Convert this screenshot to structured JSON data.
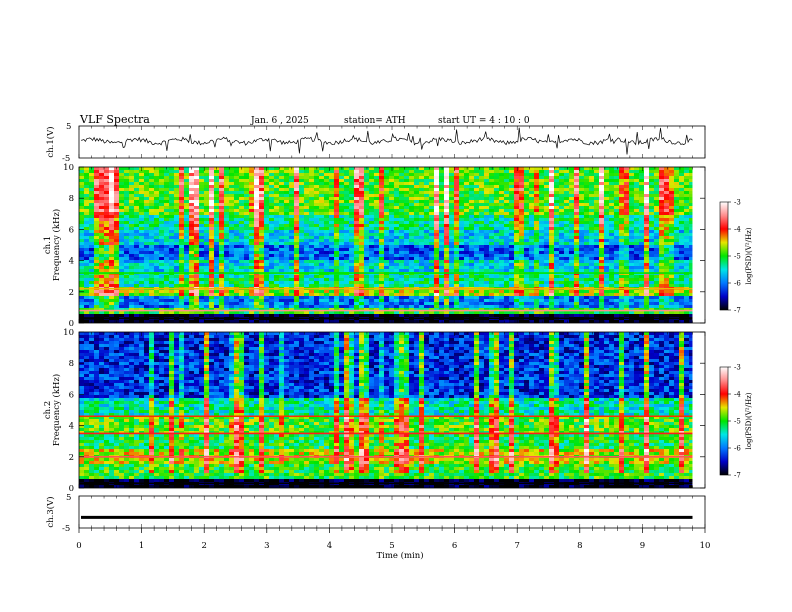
{
  "header": {
    "title": "VLF  Spectra",
    "date": "Jan. 6  , 2025",
    "station": "station= ATH",
    "start_time": "start  UT  =   4  : 10 : 0"
  },
  "chart_data": {
    "type": "heatmap",
    "x_axis": {
      "label": "Time  (min)",
      "range": [
        0,
        10
      ],
      "ticks": [
        "0",
        "1",
        "2",
        "3",
        "4",
        "5",
        "6",
        "7",
        "8",
        "9",
        "10"
      ],
      "data_end_min": 9.8
    },
    "panels": [
      {
        "kind": "waveform",
        "ylabel": "ch.1(V)",
        "ylim": [
          -5,
          5
        ],
        "yticks": [
          "5",
          "-5"
        ],
        "baseline_v": 0.3
      },
      {
        "kind": "spectrogram",
        "ylabel_1": "ch.1",
        "ylabel_2": "Frequency  (kHz)",
        "ylim_khz": [
          0,
          10
        ],
        "yticks": [
          "0",
          "2",
          "4",
          "6",
          "8",
          "10"
        ],
        "bands": [
          {
            "range_khz": [
              0.0,
              0.5
            ],
            "level": -7.0
          },
          {
            "range_khz": [
              0.5,
              1.0
            ],
            "level": -5.0
          },
          {
            "range_khz": [
              1.0,
              1.8
            ],
            "level": -6.0
          },
          {
            "range_khz": [
              1.8,
              2.4
            ],
            "level": -4.7
          },
          {
            "range_khz": [
              2.4,
              3.3
            ],
            "level": -5.3
          },
          {
            "range_khz": [
              3.3,
              4.0
            ],
            "level": -5.6
          },
          {
            "range_khz": [
              4.0,
              5.0
            ],
            "level": -6.1
          },
          {
            "range_khz": [
              5.0,
              6.0
            ],
            "level": -5.6
          },
          {
            "range_khz": [
              6.0,
              7.0
            ],
            "level": -5.3
          },
          {
            "range_khz": [
              7.0,
              10.0
            ],
            "level": -4.9
          }
        ],
        "lines_khz": [
          {
            "f": 2.2,
            "level": -4.4
          },
          {
            "f": 0.8,
            "level": -3.5
          },
          {
            "f": 3.2,
            "level": -5.0
          },
          {
            "f": 0.3,
            "level": -7.0
          }
        ]
      },
      {
        "kind": "spectrogram",
        "ylabel_1": "ch.2",
        "ylabel_2": "Frequency  (kHz)",
        "ylim_khz": [
          0,
          10
        ],
        "yticks": [
          "0",
          "2",
          "4",
          "6",
          "8",
          "10"
        ],
        "bands": [
          {
            "range_khz": [
              0.0,
              0.5
            ],
            "level": -7.0
          },
          {
            "range_khz": [
              0.5,
              1.5
            ],
            "level": -5.0
          },
          {
            "range_khz": [
              1.5,
              2.5
            ],
            "level": -4.6
          },
          {
            "range_khz": [
              2.5,
              3.5
            ],
            "level": -5.1
          },
          {
            "range_khz": [
              3.5,
              4.6
            ],
            "level": -4.9
          },
          {
            "range_khz": [
              4.6,
              5.8
            ],
            "level": -5.4
          },
          {
            "range_khz": [
              5.8,
              10.0
            ],
            "level": -6.3
          }
        ],
        "lines_khz": [
          {
            "f": 2.0,
            "level": -3.7
          },
          {
            "f": 3.5,
            "level": -3.9
          },
          {
            "f": 4.6,
            "level": -4.1
          },
          {
            "f": 0.3,
            "level": -7.0
          }
        ]
      },
      {
        "kind": "waveform",
        "ylabel": "ch.3(V)",
        "ylim": [
          -5,
          5
        ],
        "yticks": [
          "5",
          "-5"
        ],
        "baseline_v": -1.7
      }
    ],
    "colorbar": {
      "label": "log(PSD)(V²/Hz)",
      "range": [
        -7,
        -3
      ],
      "ticks": [
        "-3",
        "-4",
        "-5",
        "-6",
        "-7"
      ],
      "colors": [
        "#000000",
        "#0000c8",
        "#0078ff",
        "#00e6e6",
        "#00e600",
        "#e6e600",
        "#ff0000",
        "#ff8c8c",
        "#ffffff"
      ]
    }
  }
}
